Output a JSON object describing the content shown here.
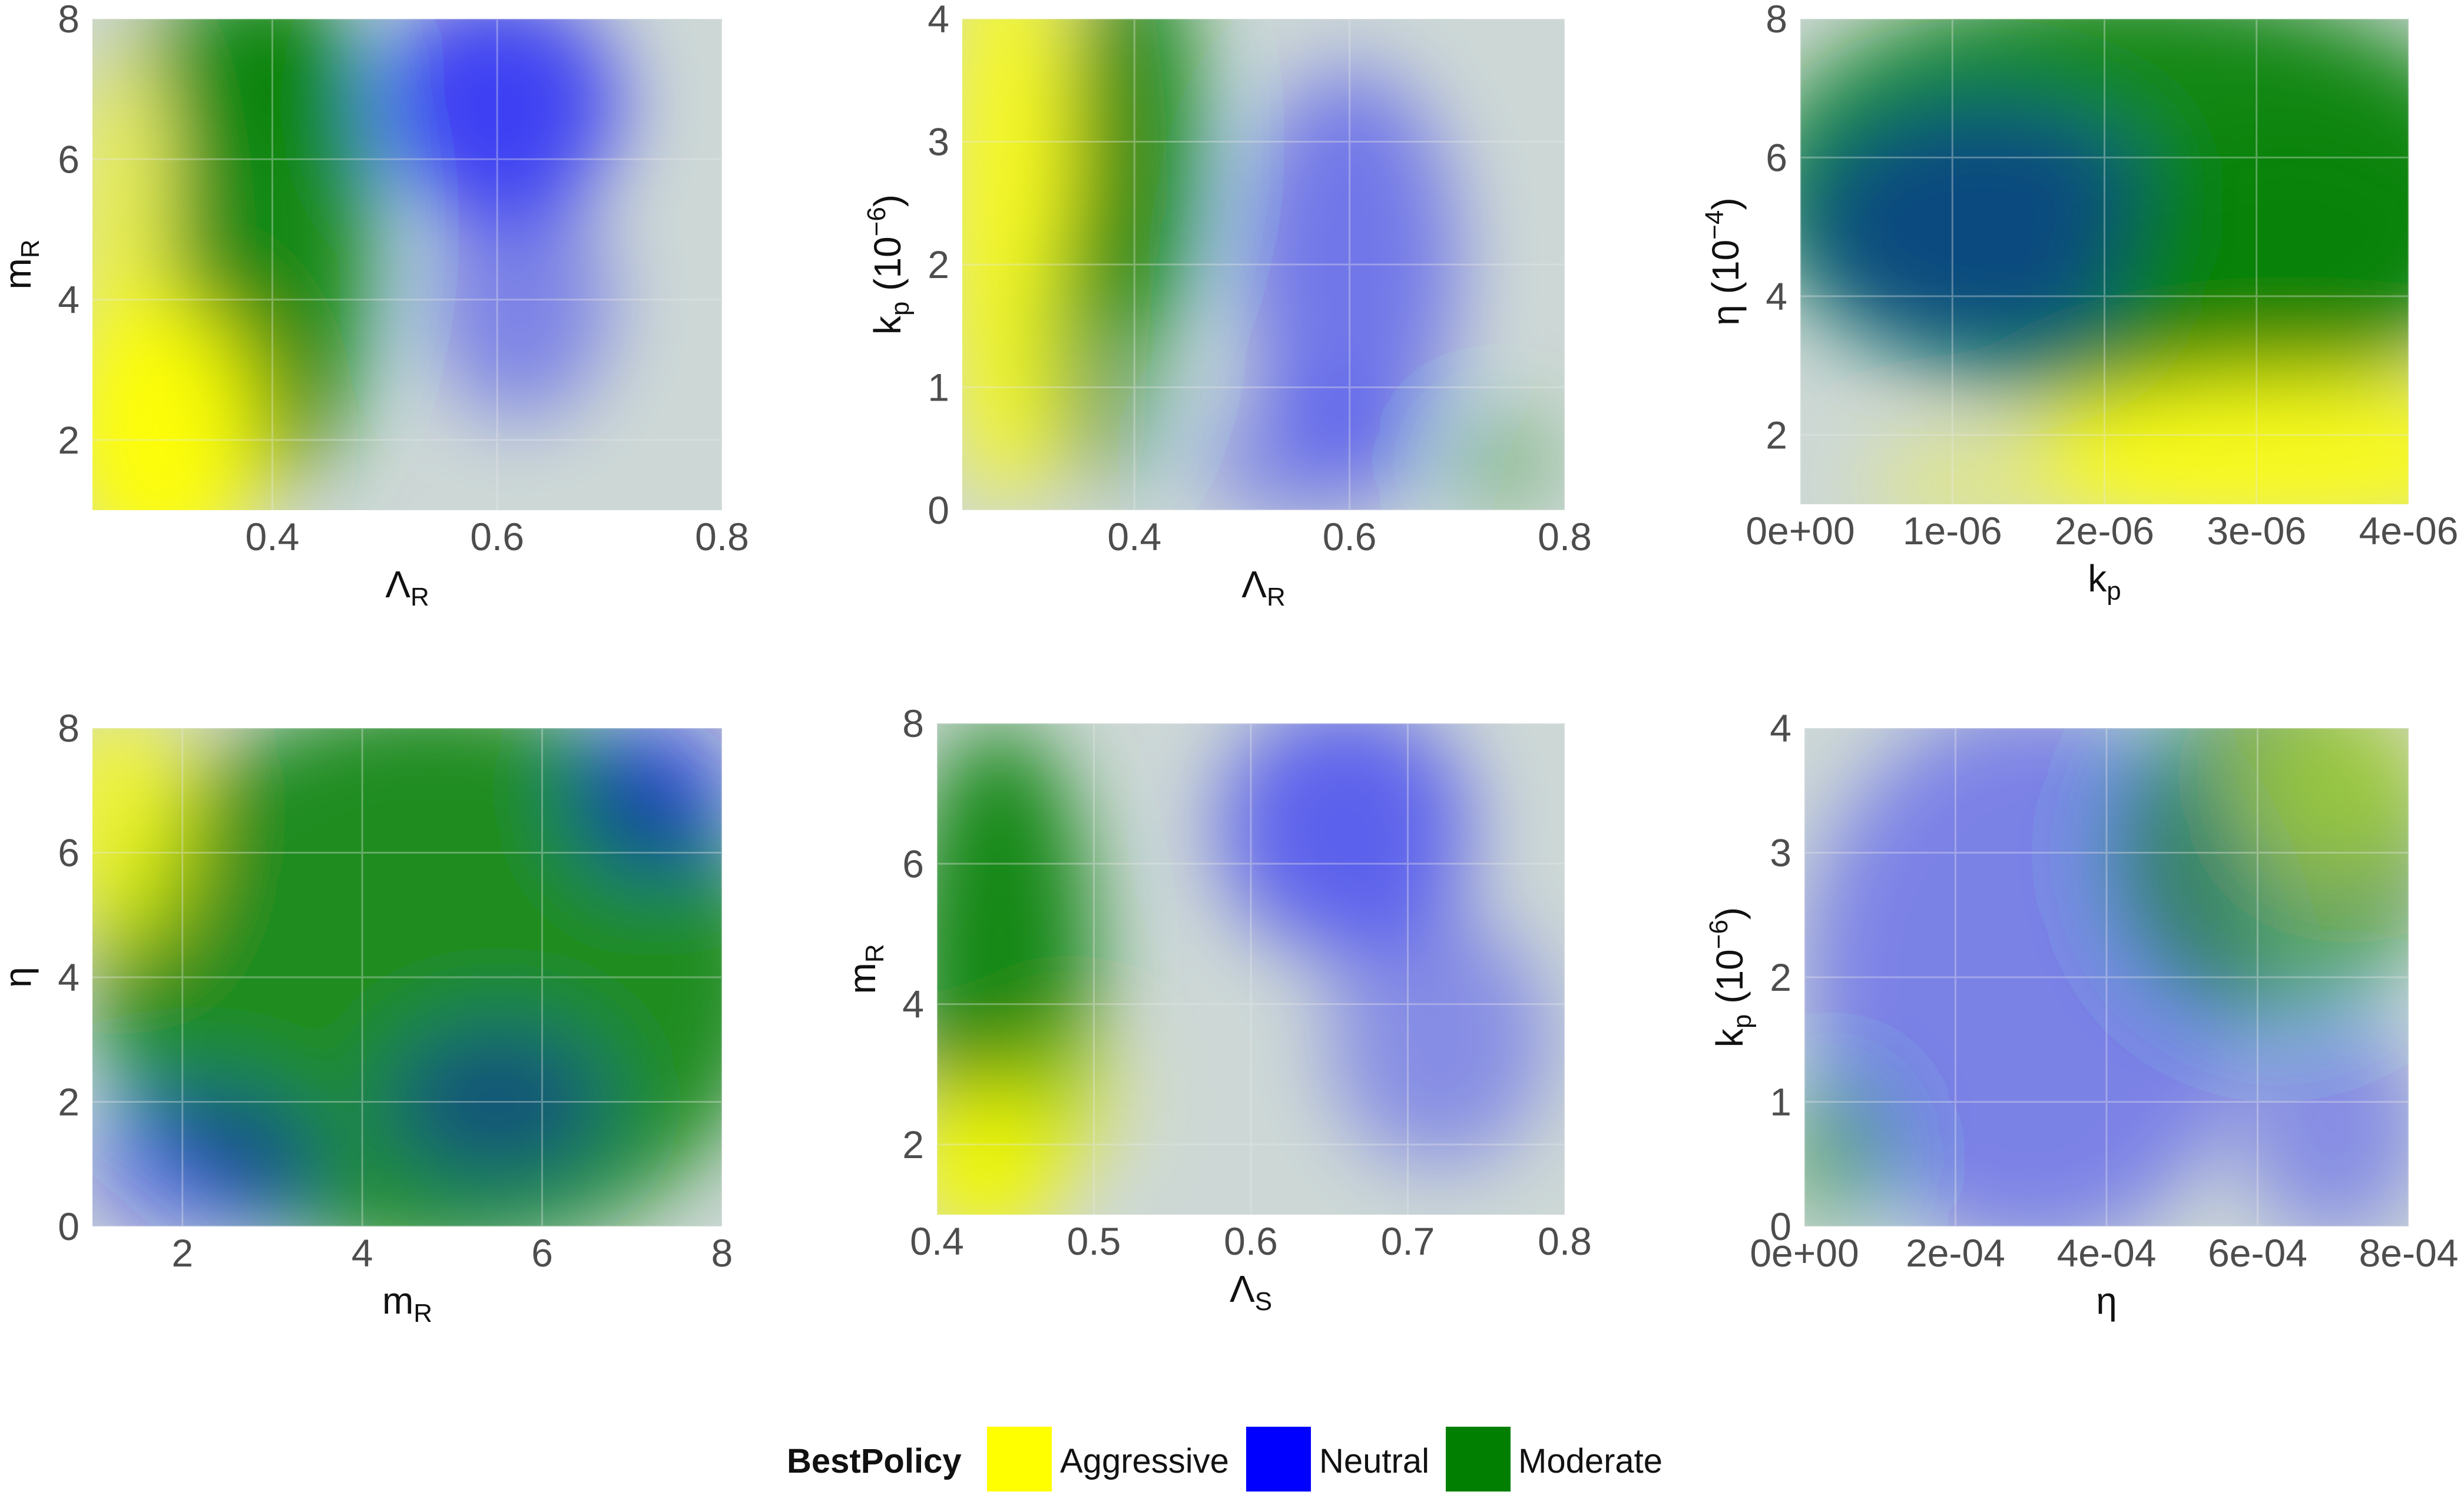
{
  "legend": {
    "title": "BestPolicy",
    "entries": [
      {
        "name": "Aggressive",
        "color": "#ffff00"
      },
      {
        "name": "Neutral",
        "color": "#0000ff"
      },
      {
        "name": "Moderate",
        "color": "#007f00"
      }
    ]
  },
  "chart_data": [
    {
      "type": "heatmap",
      "xlabel": {
        "main": "Λ",
        "sub": "R"
      },
      "ylabel": {
        "main": "m",
        "sub": "R"
      },
      "xlim": [
        0.24,
        0.8
      ],
      "ylim": [
        1,
        8
      ],
      "xticks": [
        {
          "v": 0.4,
          "label": "0.4"
        },
        {
          "v": 0.6,
          "label": "0.6"
        },
        {
          "v": 0.8,
          "label": "0.8"
        }
      ],
      "yticks": [
        {
          "v": 2,
          "label": "2"
        },
        {
          "v": 4,
          "label": "4"
        },
        {
          "v": 6,
          "label": "6"
        },
        {
          "v": 8,
          "label": "8"
        }
      ],
      "regions": [
        {
          "policy": "Moderate",
          "x": 0.4,
          "y": 5.0,
          "rx": 0.09,
          "ry": 3.6,
          "opacity": 0.9
        },
        {
          "policy": "Moderate",
          "x": 0.38,
          "y": 7.5,
          "rx": 0.1,
          "ry": 1.2,
          "opacity": 0.6
        },
        {
          "policy": "Aggressive",
          "x": 0.3,
          "y": 2.0,
          "rx": 0.09,
          "ry": 2.0,
          "opacity": 0.95
        },
        {
          "policy": "Aggressive",
          "x": 0.26,
          "y": 4.5,
          "rx": 0.04,
          "ry": 3.0,
          "opacity": 0.7
        },
        {
          "policy": "Neutral",
          "x": 0.6,
          "y": 6.8,
          "rx": 0.11,
          "ry": 1.6,
          "opacity": 0.7
        },
        {
          "policy": "Neutral",
          "x": 0.62,
          "y": 4.0,
          "rx": 0.08,
          "ry": 1.7,
          "opacity": 0.4
        }
      ]
    },
    {
      "type": "heatmap",
      "xlabel": {
        "main": "Λ",
        "sub": "R"
      },
      "ylabel": {
        "main": "k",
        "sub": "p",
        "suffix": "  (10",
        "exp": "−6",
        "close": ")"
      },
      "xlim": [
        0.24,
        0.8
      ],
      "ylim": [
        0,
        4
      ],
      "xticks": [
        {
          "v": 0.4,
          "label": "0.4"
        },
        {
          "v": 0.6,
          "label": "0.6"
        },
        {
          "v": 0.8,
          "label": "0.8"
        }
      ],
      "yticks": [
        {
          "v": 0,
          "label": "0"
        },
        {
          "v": 1,
          "label": "1"
        },
        {
          "v": 2,
          "label": "2"
        },
        {
          "v": 3,
          "label": "3"
        },
        {
          "v": 4,
          "label": "4"
        }
      ],
      "regions": [
        {
          "policy": "Aggressive",
          "x": 0.28,
          "y": 2.5,
          "rx": 0.06,
          "ry": 2.5,
          "opacity": 0.85
        },
        {
          "policy": "Moderate",
          "x": 0.4,
          "y": 3.0,
          "rx": 0.06,
          "ry": 1.6,
          "opacity": 0.9
        },
        {
          "policy": "Moderate",
          "x": 0.37,
          "y": 1.4,
          "rx": 0.06,
          "ry": 1.2,
          "opacity": 0.5
        },
        {
          "policy": "Neutral",
          "x": 0.6,
          "y": 2.0,
          "rx": 0.1,
          "ry": 1.6,
          "opacity": 0.45
        },
        {
          "policy": "Neutral",
          "x": 0.56,
          "y": 0.4,
          "rx": 0.1,
          "ry": 0.5,
          "opacity": 0.35
        },
        {
          "policy": "Moderate",
          "x": 0.74,
          "y": 0.4,
          "rx": 0.06,
          "ry": 0.4,
          "opacity": 0.35
        }
      ]
    },
    {
      "type": "heatmap",
      "xlabel": {
        "main": "k",
        "sub": "p"
      },
      "ylabel": {
        "main": "η",
        "sub": "",
        "suffix": "  (10",
        "exp": "−4",
        "close": ")"
      },
      "xlim": [
        0,
        4e-06
      ],
      "ylim": [
        1,
        8
      ],
      "xticks": [
        {
          "v": 0,
          "label": "0e+00"
        },
        {
          "v": 1e-06,
          "label": "1e-06"
        },
        {
          "v": 2e-06,
          "label": "2e-06"
        },
        {
          "v": 3e-06,
          "label": "3e-06"
        },
        {
          "v": 4e-06,
          "label": "4e-06"
        }
      ],
      "yticks": [
        {
          "v": 2,
          "label": "2"
        },
        {
          "v": 4,
          "label": "4"
        },
        {
          "v": 6,
          "label": "6"
        },
        {
          "v": 8,
          "label": "8"
        }
      ],
      "regions": [
        {
          "policy": "Moderate",
          "x": 2.2e-06,
          "y": 5.5,
          "rx": 2.5e-06,
          "ry": 3.0,
          "opacity": 0.9
        },
        {
          "policy": "Neutral",
          "x": 1.2e-06,
          "y": 5.0,
          "rx": 1.2e-06,
          "ry": 1.8,
          "opacity": 0.45
        },
        {
          "policy": "Moderate",
          "x": 3.2e-06,
          "y": 4.5,
          "rx": 1.2e-06,
          "ry": 2.0,
          "opacity": 0.6
        },
        {
          "policy": "Aggressive",
          "x": 3.2e-06,
          "y": 1.7,
          "rx": 1.6e-06,
          "ry": 1.2,
          "opacity": 0.85
        },
        {
          "policy": "Aggressive",
          "x": 1.6e-06,
          "y": 1.3,
          "rx": 1.2e-06,
          "ry": 0.6,
          "opacity": 0.45
        }
      ]
    },
    {
      "type": "heatmap",
      "xlabel": {
        "main": "m",
        "sub": "R"
      },
      "ylabel": {
        "main": "η",
        "sub": ""
      },
      "xlim": [
        1,
        8
      ],
      "ylim": [
        0,
        8
      ],
      "xticks": [
        {
          "v": 2,
          "label": "2"
        },
        {
          "v": 4,
          "label": "4"
        },
        {
          "v": 6,
          "label": "6"
        },
        {
          "v": 8,
          "label": "8"
        }
      ],
      "yticks": [
        {
          "v": 0,
          "label": "0"
        },
        {
          "v": 2,
          "label": "2"
        },
        {
          "v": 4,
          "label": "4"
        },
        {
          "v": 6,
          "label": "6"
        },
        {
          "v": 8,
          "label": "8"
        }
      ],
      "regions": [
        {
          "policy": "Moderate",
          "x": 4.8,
          "y": 4.0,
          "rx": 3.8,
          "ry": 4.5,
          "opacity": 0.85
        },
        {
          "policy": "Aggressive",
          "x": 1.3,
          "y": 6.5,
          "rx": 0.8,
          "ry": 2.0,
          "opacity": 0.75
        },
        {
          "policy": "Neutral",
          "x": 7.3,
          "y": 7.0,
          "rx": 0.9,
          "ry": 1.3,
          "opacity": 0.55
        },
        {
          "policy": "Neutral",
          "x": 2.2,
          "y": 1.0,
          "rx": 1.3,
          "ry": 1.2,
          "opacity": 0.45
        },
        {
          "policy": "Neutral",
          "x": 5.5,
          "y": 2.0,
          "rx": 1.2,
          "ry": 1.2,
          "opacity": 0.4
        }
      ]
    },
    {
      "type": "heatmap",
      "xlabel": {
        "main": "Λ",
        "sub": "S"
      },
      "ylabel": {
        "main": "m",
        "sub": "R"
      },
      "xlim": [
        0.4,
        0.8
      ],
      "ylim": [
        1,
        8
      ],
      "xticks": [
        {
          "v": 0.4,
          "label": "0.4"
        },
        {
          "v": 0.5,
          "label": "0.5"
        },
        {
          "v": 0.6,
          "label": "0.6"
        },
        {
          "v": 0.7,
          "label": "0.7"
        },
        {
          "v": 0.8,
          "label": "0.8"
        }
      ],
      "yticks": [
        {
          "v": 2,
          "label": "2"
        },
        {
          "v": 4,
          "label": "4"
        },
        {
          "v": 6,
          "label": "6"
        },
        {
          "v": 8,
          "label": "8"
        }
      ],
      "regions": [
        {
          "policy": "Moderate",
          "x": 0.44,
          "y": 4.5,
          "rx": 0.06,
          "ry": 3.5,
          "opacity": 0.9
        },
        {
          "policy": "Aggressive",
          "x": 0.43,
          "y": 1.7,
          "rx": 0.05,
          "ry": 1.2,
          "opacity": 0.9
        },
        {
          "policy": "Aggressive",
          "x": 0.48,
          "y": 2.6,
          "rx": 0.04,
          "ry": 1.0,
          "opacity": 0.4
        },
        {
          "policy": "Neutral",
          "x": 0.66,
          "y": 6.5,
          "rx": 0.08,
          "ry": 1.8,
          "opacity": 0.55
        },
        {
          "policy": "Neutral",
          "x": 0.72,
          "y": 3.5,
          "rx": 0.07,
          "ry": 1.8,
          "opacity": 0.35
        }
      ]
    },
    {
      "type": "heatmap",
      "xlabel": {
        "main": "η",
        "sub": ""
      },
      "ylabel": {
        "main": "k",
        "sub": "p",
        "suffix": "  (10",
        "exp": "−6",
        "close": ")"
      },
      "xlim": [
        0,
        0.0008
      ],
      "ylim": [
        0,
        4
      ],
      "xticks": [
        {
          "v": 0,
          "label": "0e+00"
        },
        {
          "v": 0.0002,
          "label": "2e-04"
        },
        {
          "v": 0.0004,
          "label": "4e-04"
        },
        {
          "v": 0.0006,
          "label": "6e-04"
        },
        {
          "v": 0.0008,
          "label": "8e-04"
        }
      ],
      "yticks": [
        {
          "v": 0,
          "label": "0"
        },
        {
          "v": 1,
          "label": "1"
        },
        {
          "v": 2,
          "label": "2"
        },
        {
          "v": 3,
          "label": "3"
        },
        {
          "v": 4,
          "label": "4"
        }
      ],
      "regions": [
        {
          "policy": "Neutral",
          "x": 0.0003,
          "y": 2.0,
          "rx": 0.0003,
          "ry": 2.2,
          "opacity": 0.4
        },
        {
          "policy": "Moderate",
          "x": 0.00062,
          "y": 3.0,
          "rx": 0.00022,
          "ry": 1.4,
          "opacity": 0.55
        },
        {
          "policy": "Aggressive",
          "x": 0.00072,
          "y": 3.6,
          "rx": 0.00012,
          "ry": 0.7,
          "opacity": 0.35
        },
        {
          "policy": "Moderate",
          "x": 4e-05,
          "y": 0.6,
          "rx": 8e-05,
          "ry": 0.6,
          "opacity": 0.45
        },
        {
          "policy": "Neutral",
          "x": 0.0007,
          "y": 0.8,
          "rx": 0.00012,
          "ry": 0.9,
          "opacity": 0.35
        }
      ]
    }
  ]
}
